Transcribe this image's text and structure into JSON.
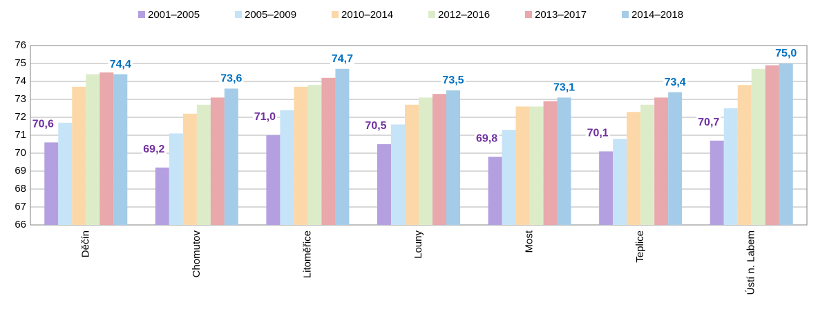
{
  "chart_data": {
    "type": "bar",
    "categories": [
      "Děčín",
      "Chomutov",
      "Litoměřice",
      "Louny",
      "Most",
      "Teplice",
      "Ústí n. Labem"
    ],
    "series": [
      {
        "name": "2001–2005",
        "color": "#b4a0e0",
        "values": [
          70.6,
          69.2,
          71.0,
          70.5,
          69.8,
          70.1,
          70.7
        ],
        "value_labels": [
          "70,6",
          "69,2",
          "71,0",
          "70,5",
          "69,8",
          "70,1",
          "70,7"
        ],
        "label_color": "#7030a0"
      },
      {
        "name": "2005–2009",
        "color": "#c6e4f8",
        "values": [
          71.7,
          71.1,
          72.4,
          71.6,
          71.3,
          70.8,
          72.5
        ]
      },
      {
        "name": "2010–2014",
        "color": "#fcd8a8",
        "values": [
          73.7,
          72.2,
          73.7,
          72.7,
          72.6,
          72.3,
          73.8
        ]
      },
      {
        "name": "2012–2016",
        "color": "#dcecc8",
        "values": [
          74.4,
          72.7,
          73.8,
          73.1,
          72.6,
          72.7,
          74.7
        ]
      },
      {
        "name": "2013–2017",
        "color": "#e8a8ac",
        "values": [
          74.5,
          73.1,
          74.2,
          73.3,
          72.9,
          73.1,
          74.9
        ]
      },
      {
        "name": "2014–2018",
        "color": "#a4cce8",
        "values": [
          74.4,
          73.6,
          74.7,
          73.5,
          73.1,
          73.4,
          75.0
        ],
        "value_labels": [
          "74,4",
          "73,6",
          "74,7",
          "73,5",
          "73,1",
          "73,4",
          "75,0"
        ],
        "label_color": "#0070c0"
      }
    ],
    "ylim": [
      66,
      76
    ],
    "yticks": [
      66,
      67,
      68,
      69,
      70,
      71,
      72,
      73,
      74,
      75,
      76
    ],
    "grid": true,
    "legend": "top"
  }
}
